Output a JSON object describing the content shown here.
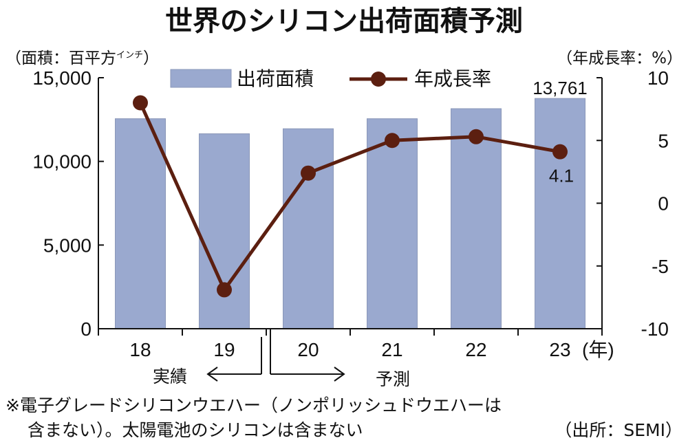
{
  "chart_data": {
    "type": "bar",
    "title": "世界のシリコン出荷面積予測",
    "left_unit": "（面積：百平方",
    "left_unit_small": "インチ",
    "right_unit": "（年成長率：%）",
    "x_unit": "(年)",
    "categories": [
      "18",
      "19",
      "20",
      "21",
      "22",
      "23"
    ],
    "series": [
      {
        "name": "出荷面積",
        "type": "bar",
        "axis": "left",
        "color": "#9aa9cf",
        "values": [
          12550,
          11650,
          11950,
          12550,
          13150,
          13761
        ]
      },
      {
        "name": "年成長率",
        "type": "line",
        "axis": "right",
        "color": "#5c1f10",
        "values": [
          8.0,
          -6.9,
          2.4,
          5.0,
          5.3,
          4.1
        ]
      }
    ],
    "left_axis": {
      "ylim": [
        0,
        15000
      ],
      "ticks": [
        "0",
        "5,000",
        "10,000",
        "15,000"
      ],
      "tick_values": [
        0,
        5000,
        10000,
        15000
      ]
    },
    "right_axis": {
      "ylim": [
        -10,
        10
      ],
      "ticks": [
        "-10",
        "-5",
        "0",
        "5",
        "10"
      ],
      "tick_values": [
        -10,
        -5,
        0,
        5,
        10
      ]
    },
    "data_labels": {
      "bar_last": "13,761",
      "line_last": "4.1"
    },
    "annotations": {
      "actual": "実績",
      "forecast": "予測"
    },
    "legend_position": "top",
    "grid": false
  },
  "footnote": {
    "line1": "※電子グレードシリコンウエハー（ノンポリッシュドウエハーは",
    "line2": "含まない）。太陽電池のシリコンは含まない",
    "source": "（出所：SEMI）"
  },
  "colors": {
    "bar": "#9aa9cf",
    "bar_edge": "#8a97b8",
    "line": "#5c1f10",
    "axis": "#111111"
  }
}
